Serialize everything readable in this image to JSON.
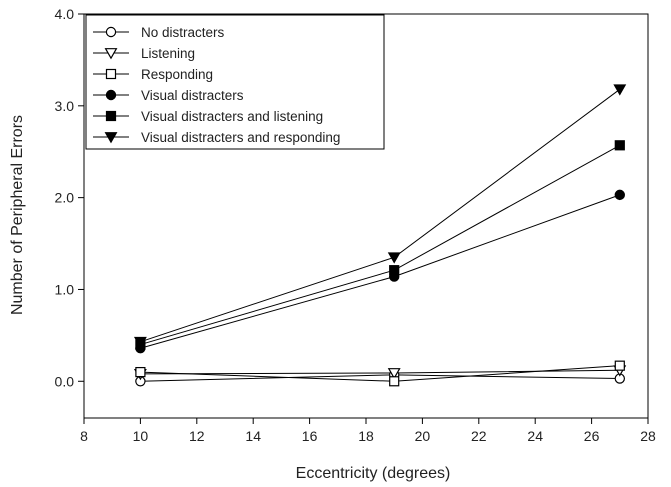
{
  "chart_data": {
    "type": "line",
    "title": "",
    "xlabel": "Eccentricity (degrees)",
    "ylabel": "Number of Peripheral Errors",
    "xlim": [
      8,
      28
    ],
    "ylim": [
      -0.4,
      4.0
    ],
    "xticks": [
      8,
      10,
      12,
      14,
      16,
      18,
      20,
      22,
      24,
      26,
      28
    ],
    "yticks": [
      0.0,
      1.0,
      2.0,
      3.0,
      4.0
    ],
    "xtick_labels": [
      "8",
      "10",
      "12",
      "14",
      "16",
      "18",
      "20",
      "22",
      "24",
      "26",
      "28"
    ],
    "ytick_labels": [
      "0.0",
      "1.0",
      "2.0",
      "3.0",
      "4.0"
    ],
    "grid": false,
    "legend_position": "top-left",
    "x": [
      10,
      19,
      27
    ],
    "series": [
      {
        "name": "No distracters",
        "values": [
          0.0,
          0.07,
          0.03
        ],
        "marker": "circle-open"
      },
      {
        "name": "Listening",
        "values": [
          0.08,
          0.09,
          0.12
        ],
        "marker": "triangle-down-open"
      },
      {
        "name": "Responding",
        "values": [
          0.1,
          0.0,
          0.17
        ],
        "marker": "square-open"
      },
      {
        "name": "Visual distracters",
        "values": [
          0.36,
          1.14,
          2.03
        ],
        "marker": "circle-filled"
      },
      {
        "name": "Visual distracters and listening",
        "values": [
          0.4,
          1.21,
          2.57
        ],
        "marker": "square-filled"
      },
      {
        "name": "Visual distracters and responding",
        "values": [
          0.43,
          1.35,
          3.18
        ],
        "marker": "triangle-down-filled"
      }
    ]
  }
}
